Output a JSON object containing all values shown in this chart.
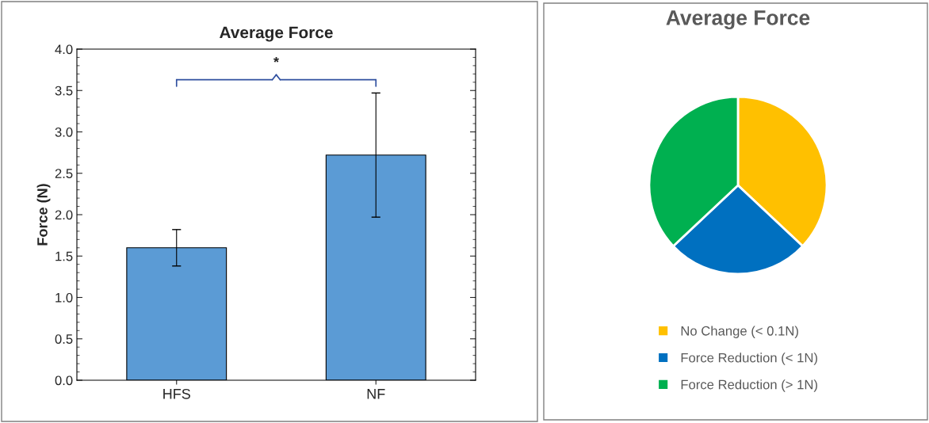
{
  "chart_data": [
    {
      "type": "bar",
      "title": "Average Force",
      "ylabel": "Force (N)",
      "categories": [
        "HFS",
        "NF"
      ],
      "values": [
        1.6,
        2.72
      ],
      "errors": [
        0.22,
        0.75
      ],
      "color": "#5b9bd5",
      "ylim": [
        0,
        4
      ],
      "yticks": [
        {
          "value": 0,
          "label": "0.0"
        },
        0.5,
        {
          "value": 1,
          "label": "1.0"
        },
        1.5,
        {
          "value": 2,
          "label": "2.0"
        },
        2.5,
        {
          "value": 3,
          "label": "3.0"
        },
        3.5,
        {
          "value": 4,
          "label": "4.0"
        }
      ],
      "annotations": [
        "*"
      ],
      "grid": false,
      "legend": false
    },
    {
      "type": "pie",
      "title": "Average Force",
      "categories": [
        "No Change (< 0.1N)",
        "Force Reduction (< 1N)",
        "Force Reduction (> 1N)"
      ],
      "values": [
        37,
        26,
        37
      ],
      "colors": [
        "#ffc000",
        "#0070c0",
        "#00b050"
      ],
      "legend": "bottom"
    }
  ]
}
